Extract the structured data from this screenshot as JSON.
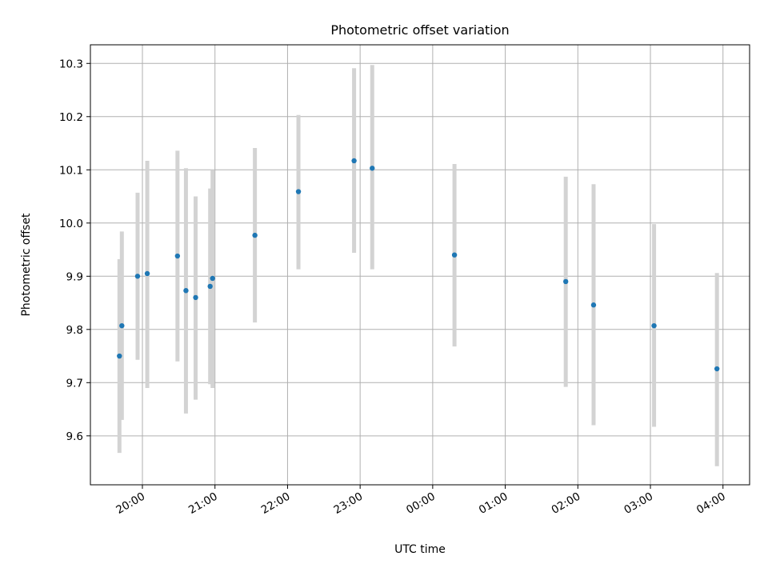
{
  "chart_data": {
    "type": "scatter",
    "title": "Photometric offset variation",
    "xlabel": "UTC time",
    "ylabel": "Photometric offset",
    "x_is_time": true,
    "xlim": [
      "19:17",
      "04:22"
    ],
    "ylim": [
      9.508,
      10.335
    ],
    "grid": true,
    "xticks": [
      "20:00",
      "21:00",
      "22:00",
      "23:00",
      "00:00",
      "01:00",
      "02:00",
      "03:00",
      "04:00"
    ],
    "yticks": [
      9.6,
      9.7,
      9.8,
      9.9,
      10.0,
      10.1,
      10.2,
      10.3
    ],
    "marker_color": "#1f77b4",
    "errorbar_color": "#d3d3d3",
    "points": [
      {
        "time": "19:41",
        "y": 9.75,
        "err_low": 9.568,
        "err_high": 9.932
      },
      {
        "time": "19:43",
        "y": 9.807,
        "err_low": 9.63,
        "err_high": 9.984
      },
      {
        "time": "19:56",
        "y": 9.9,
        "err_low": 9.743,
        "err_high": 10.057
      },
      {
        "time": "20:04",
        "y": 9.905,
        "err_low": 9.69,
        "err_high": 10.117
      },
      {
        "time": "20:29",
        "y": 9.938,
        "err_low": 9.74,
        "err_high": 10.136
      },
      {
        "time": "20:36",
        "y": 9.873,
        "err_low": 9.642,
        "err_high": 10.103
      },
      {
        "time": "20:44",
        "y": 9.86,
        "err_low": 9.668,
        "err_high": 10.05
      },
      {
        "time": "20:56",
        "y": 9.881,
        "err_low": 9.697,
        "err_high": 10.065
      },
      {
        "time": "20:58",
        "y": 9.896,
        "err_low": 9.69,
        "err_high": 10.1
      },
      {
        "time": "21:33",
        "y": 9.977,
        "err_low": 9.813,
        "err_high": 10.141
      },
      {
        "time": "22:09",
        "y": 10.059,
        "err_low": 9.913,
        "err_high": 10.203
      },
      {
        "time": "22:55",
        "y": 10.117,
        "err_low": 9.944,
        "err_high": 10.291
      },
      {
        "time": "23:10",
        "y": 10.103,
        "err_low": 9.913,
        "err_high": 10.297
      },
      {
        "time": "00:18",
        "y": 9.94,
        "err_low": 9.768,
        "err_high": 10.111
      },
      {
        "time": "01:50",
        "y": 9.89,
        "err_low": 9.692,
        "err_high": 10.087
      },
      {
        "time": "02:13",
        "y": 9.846,
        "err_low": 9.62,
        "err_high": 10.073
      },
      {
        "time": "03:03",
        "y": 9.807,
        "err_low": 9.617,
        "err_high": 9.998
      },
      {
        "time": "03:55",
        "y": 9.726,
        "err_low": 9.543,
        "err_high": 9.906
      }
    ]
  }
}
